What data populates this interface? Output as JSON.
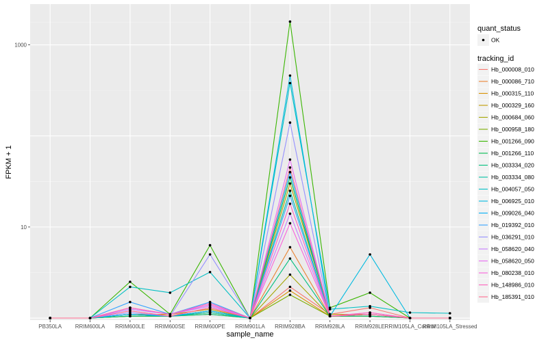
{
  "chart_data": {
    "type": "line",
    "xlabel": "sample_name",
    "ylabel": "FPKM + 1",
    "y_scale": "log10",
    "ylim": [
      0.95,
      2800
    ],
    "y_ticks": [
      10,
      1000
    ],
    "y_tick_labels": [
      "10",
      "1000"
    ],
    "categories": [
      "PB350LA",
      "RRIM600LA",
      "RRIM600LE",
      "RRIM600SE",
      "RRIM600PE",
      "RRIM901LA",
      "RRIM928BA",
      "RRIM928LA",
      "RRIM928LE",
      "RRIM105LA_Control",
      "RRIM105LA_Stressed"
    ],
    "grid": true,
    "background": "#ebebeb",
    "legend_placement": "right",
    "legend_quant": {
      "title": "quant_status",
      "entries": [
        "OK"
      ]
    },
    "legend_series_title": "tracking_id",
    "series": [
      {
        "name": "Hb_000008_010",
        "color": "#F8766D",
        "values": [
          1,
          1,
          1.3,
          1.1,
          1.4,
          1,
          2.2,
          1.1,
          1.3,
          1,
          1
        ]
      },
      {
        "name": "Hb_000086_710",
        "color": "#EA8331",
        "values": [
          1,
          1,
          1.1,
          1.05,
          1.3,
          1,
          6,
          1.05,
          1.1,
          1,
          1
        ]
      },
      {
        "name": "Hb_000315_110",
        "color": "#D89000",
        "values": [
          1,
          1,
          1.05,
          1.05,
          1.2,
          1,
          2,
          1.05,
          1.05,
          1,
          1
        ]
      },
      {
        "name": "Hb_000329_160",
        "color": "#C09B00",
        "values": [
          1,
          1,
          1.1,
          1.1,
          1.25,
          1,
          30,
          1.1,
          1.1,
          1,
          1
        ]
      },
      {
        "name": "Hb_000684_060",
        "color": "#A3A500",
        "values": [
          1,
          1,
          1.05,
          1.05,
          1.1,
          1,
          3,
          1.05,
          1.05,
          1,
          1
        ]
      },
      {
        "name": "Hb_000958_180",
        "color": "#7CAE00",
        "values": [
          1,
          1,
          1.05,
          1.05,
          1.15,
          1,
          1.8,
          1.05,
          1.1,
          1,
          1
        ]
      },
      {
        "name": "Hb_001266_090",
        "color": "#39B600",
        "values": [
          1,
          1,
          2.5,
          1.1,
          6.3,
          1,
          1800,
          1.3,
          1.9,
          1,
          1
        ]
      },
      {
        "name": "Hb_001266_110",
        "color": "#00BB4E",
        "values": [
          1,
          1,
          1.1,
          1.05,
          1.2,
          1,
          35,
          1.05,
          1.1,
          1,
          1
        ]
      },
      {
        "name": "Hb_003334_020",
        "color": "#00BF7D",
        "values": [
          1,
          1,
          1.05,
          1.05,
          1.1,
          1,
          4.5,
          1.05,
          1.05,
          1,
          1
        ]
      },
      {
        "name": "Hb_003334_080",
        "color": "#00C1A3",
        "values": [
          1,
          1,
          1.1,
          1.05,
          1.15,
          1,
          25,
          1.05,
          1.1,
          1,
          1
        ]
      },
      {
        "name": "Hb_004057_050",
        "color": "#00BFC4",
        "values": [
          1,
          1,
          2.2,
          1.9,
          3.2,
          1,
          380,
          1.25,
          1.35,
          1.15,
          1.13
        ]
      },
      {
        "name": "Hb_006925_010",
        "color": "#00BAE0",
        "values": [
          1,
          1,
          1.1,
          1.05,
          1.2,
          1,
          460,
          1.05,
          5,
          1,
          1
        ]
      },
      {
        "name": "Hb_009026_040",
        "color": "#00B0F6",
        "values": [
          1,
          1,
          1.1,
          1.05,
          1.2,
          1,
          40,
          1.05,
          1.1,
          1,
          1
        ]
      },
      {
        "name": "Hb_019392_010",
        "color": "#35A2FF",
        "values": [
          1,
          1,
          1.5,
          1.1,
          1.5,
          1,
          22,
          1.05,
          1.1,
          1,
          1
        ]
      },
      {
        "name": "Hb_036291_010",
        "color": "#9590FF",
        "values": [
          1,
          1,
          1.15,
          1.05,
          5,
          1,
          140,
          1.05,
          1.1,
          1,
          1
        ]
      },
      {
        "name": "Hb_058620_040",
        "color": "#C77CFF",
        "values": [
          1,
          1,
          1.25,
          1.1,
          1.35,
          1,
          14,
          1.05,
          1.1,
          1,
          1
        ]
      },
      {
        "name": "Hb_058620_050",
        "color": "#E76BF3",
        "values": [
          1,
          1,
          1.3,
          1.1,
          1.4,
          1,
          55,
          1.05,
          1.15,
          1,
          1
        ]
      },
      {
        "name": "Hb_080238_010",
        "color": "#FA62DB",
        "values": [
          1,
          1,
          1.2,
          1.05,
          1.3,
          1,
          11,
          1.05,
          1.1,
          1,
          1
        ]
      },
      {
        "name": "Hb_148986_010",
        "color": "#FF62BC",
        "values": [
          1,
          1,
          1.3,
          1.1,
          1.45,
          1,
          18,
          1.05,
          1.15,
          1,
          1
        ]
      },
      {
        "name": "Hb_185391_010",
        "color": "#FF6C91",
        "values": [
          1,
          1,
          1.2,
          1.05,
          1.3,
          1,
          45,
          1.05,
          1.1,
          1,
          1
        ]
      }
    ]
  }
}
